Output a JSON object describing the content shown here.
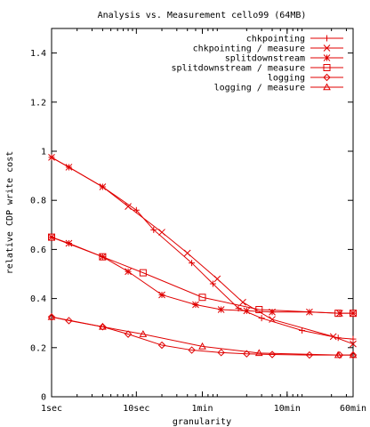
{
  "chart_data": {
    "type": "line",
    "title": "Analysis vs. Measurement cello99 (64MB)",
    "xlabel": "granularity",
    "ylabel": "relative CDP write cost",
    "x_scale": "log",
    "x_unit": "seconds",
    "xlim": [
      1,
      3600
    ],
    "ylim": [
      0,
      1.5
    ],
    "x_ticks": [
      {
        "value": 1,
        "label": "1sec"
      },
      {
        "value": 10,
        "label": "10sec"
      },
      {
        "value": 60,
        "label": "1min"
      },
      {
        "value": 600,
        "label": "10min"
      },
      {
        "value": 3600,
        "label": "60min"
      }
    ],
    "y_ticks": [
      {
        "value": 0,
        "label": "0"
      },
      {
        "value": 0.2,
        "label": "0.2"
      },
      {
        "value": 0.4,
        "label": "0.4"
      },
      {
        "value": 0.6,
        "label": "0.6"
      },
      {
        "value": 0.8,
        "label": "0.8"
      },
      {
        "value": 1,
        "label": "1"
      },
      {
        "value": 1.2,
        "label": "1.2"
      },
      {
        "value": 1.4,
        "label": "1.4"
      }
    ],
    "grid": false,
    "legend_position": "top-right",
    "color": "#e00000",
    "series": [
      {
        "name": "chkpointing",
        "marker": "plus",
        "x": [
          1,
          1.6,
          4,
          10,
          16,
          45,
          80,
          160,
          300,
          900,
          2400,
          3600
        ],
        "y": [
          0.975,
          0.935,
          0.855,
          0.76,
          0.68,
          0.545,
          0.46,
          0.36,
          0.32,
          0.27,
          0.24,
          0.235
        ]
      },
      {
        "name": "chkpointing / measure",
        "marker": "x",
        "x": [
          1,
          1.6,
          4,
          8,
          20,
          40,
          90,
          180,
          400,
          2100,
          3600
        ],
        "y": [
          0.975,
          0.935,
          0.855,
          0.775,
          0.67,
          0.585,
          0.48,
          0.385,
          0.315,
          0.245,
          0.215
        ]
      },
      {
        "name": "splitdownstream",
        "marker": "asterisk",
        "x": [
          1,
          1.6,
          4,
          8,
          20,
          50,
          100,
          200,
          400,
          1100,
          2500,
          3600
        ],
        "y": [
          0.65,
          0.625,
          0.57,
          0.51,
          0.415,
          0.375,
          0.355,
          0.35,
          0.345,
          0.345,
          0.34,
          0.34
        ]
      },
      {
        "name": "splitdownstream / measure",
        "marker": "square",
        "x": [
          1,
          4,
          12,
          60,
          280,
          2400,
          3600
        ],
        "y": [
          0.65,
          0.57,
          0.505,
          0.405,
          0.355,
          0.34,
          0.34
        ]
      },
      {
        "name": "logging",
        "marker": "diamond",
        "x": [
          1,
          1.6,
          4,
          8,
          20,
          45,
          100,
          200,
          400,
          1100,
          2500,
          3600
        ],
        "y": [
          0.325,
          0.31,
          0.285,
          0.255,
          0.21,
          0.19,
          0.18,
          0.175,
          0.172,
          0.17,
          0.17,
          0.17
        ]
      },
      {
        "name": "logging / measure",
        "marker": "triangle",
        "x": [
          1,
          4,
          12,
          60,
          280,
          2400,
          3600
        ],
        "y": [
          0.325,
          0.285,
          0.255,
          0.205,
          0.178,
          0.17,
          0.17
        ]
      }
    ]
  }
}
